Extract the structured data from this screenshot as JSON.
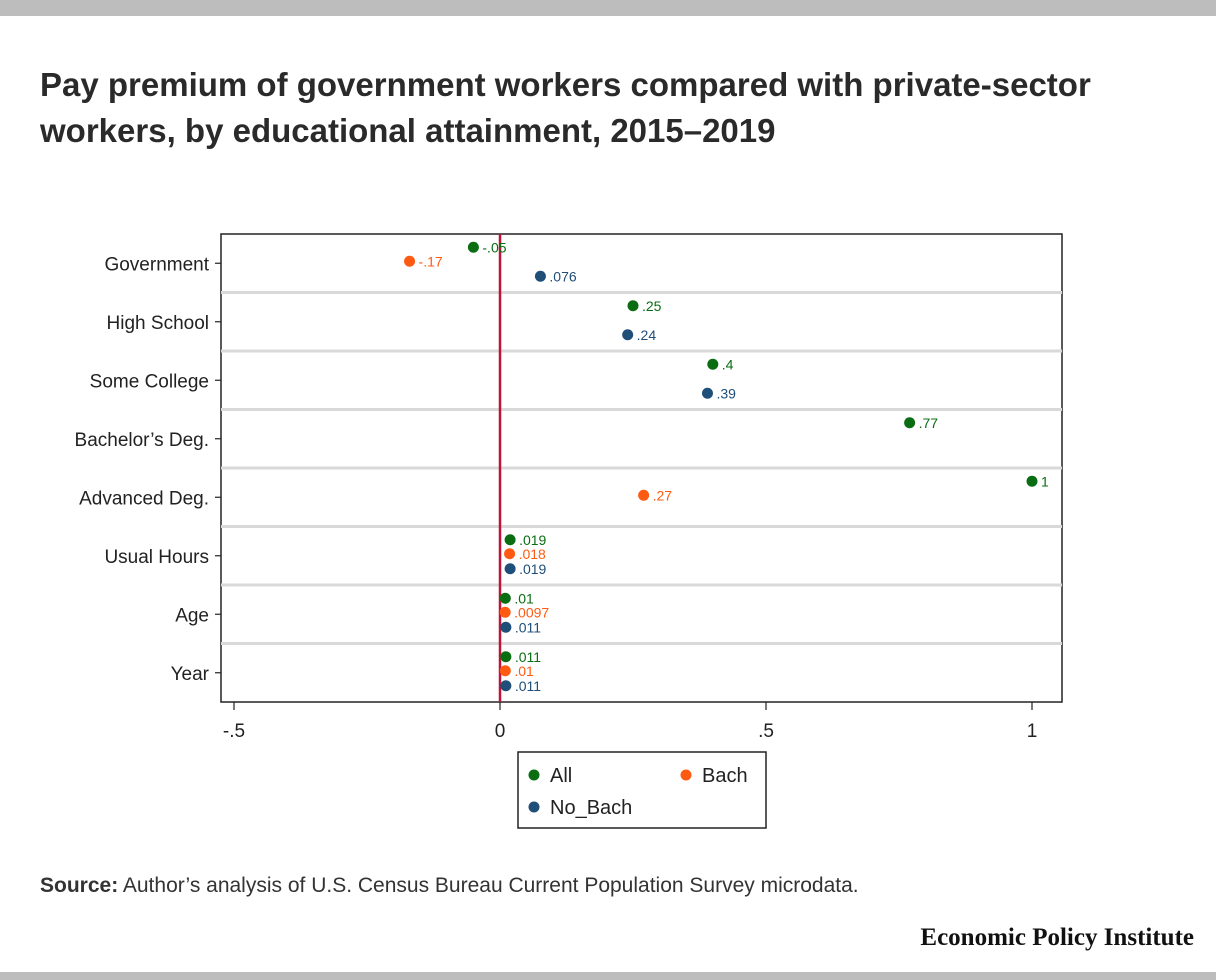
{
  "page": {
    "title": "Pay premium of government workers compared with private-sector workers, by educational attainment, 2015–2019",
    "source_label": "Source:",
    "source_text": "Author’s analysis of U.S. Census Bureau Current Population Survey microdata.",
    "brand": "Economic Policy Institute"
  },
  "chart_data": {
    "type": "scatter",
    "title": "",
    "xlabel": "",
    "ylabel": "",
    "xlim": [
      -0.55,
      1.06
    ],
    "xticks": [
      -0.5,
      0,
      0.5,
      1
    ],
    "xtick_labels": [
      "-.5",
      "0",
      ".5",
      "1"
    ],
    "reference_line_x": 0,
    "grid": "horizontal separators",
    "legend_position": "bottom",
    "categories": [
      "Government",
      "High School",
      "Some College",
      "Bachelor’s Deg.",
      "Advanced Deg.",
      "Usual Hours",
      "Age",
      "Year"
    ],
    "series": [
      {
        "name": "All",
        "color": "#0a6d12",
        "values": [
          -0.05,
          0.25,
          0.4,
          0.77,
          1.0,
          0.019,
          0.01,
          0.011
        ],
        "labels": [
          "-.05",
          ".25",
          ".4",
          ".77",
          "1",
          ".019",
          ".01",
          ".011"
        ]
      },
      {
        "name": "Bach",
        "color": "#ff5a12",
        "values": [
          -0.17,
          null,
          null,
          null,
          0.27,
          0.018,
          0.0097,
          0.01
        ],
        "labels": [
          "-.17",
          "",
          "",
          "",
          ".27",
          ".018",
          ".0097",
          ".01"
        ]
      },
      {
        "name": "No_Bach",
        "color": "#1f4e79",
        "values": [
          0.076,
          0.24,
          0.39,
          null,
          null,
          0.019,
          0.011,
          0.011
        ],
        "labels": [
          ".076",
          ".24",
          ".39",
          "",
          "",
          ".019",
          ".011",
          ".011"
        ]
      }
    ]
  }
}
